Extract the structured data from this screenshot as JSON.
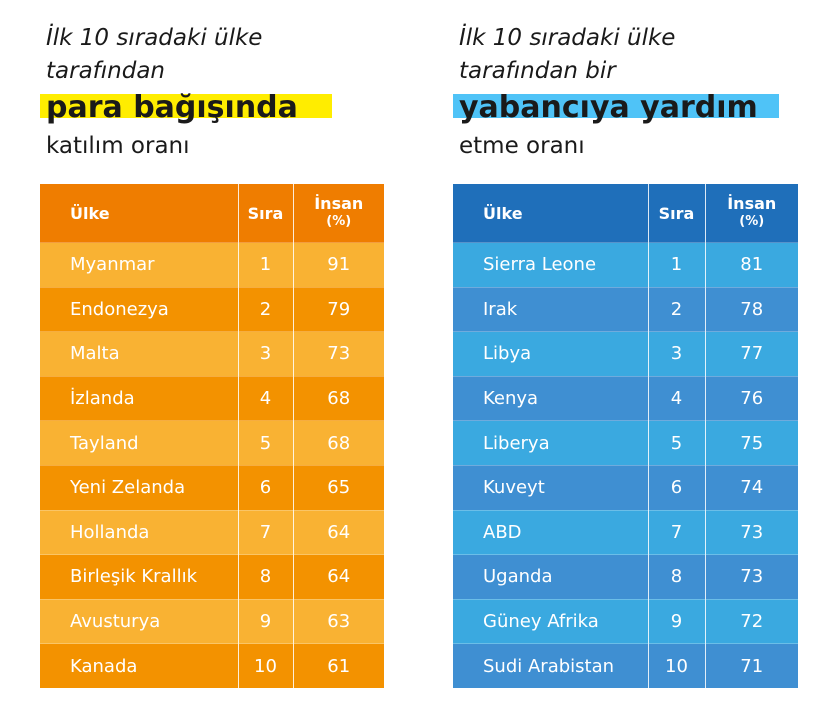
{
  "colors": {
    "orange_header": "#ef7d00",
    "orange_light": "#f9b233",
    "orange_dark": "#f39200",
    "blue_header": "#1f6fba",
    "blue_light": "#3aa9e0",
    "blue_dark": "#3f8fd2",
    "highlight_yellow": "#ffed00",
    "highlight_blue": "#4fc3f7"
  },
  "left": {
    "title_line1": "İlk 10 sıradaki ülke",
    "title_line2": "tarafından",
    "highlight": "para bağışında",
    "subtitle": "katılım oranı",
    "headers": {
      "country": "Ülke",
      "rank": "Sıra",
      "pct_main": "İnsan",
      "pct_unit": "(%)"
    }
  },
  "right": {
    "title_line1": "İlk 10 sıradaki ülke",
    "title_line2": "tarafından bir",
    "highlight": "yabancıya yardım",
    "subtitle": "etme oranı",
    "headers": {
      "country": "Ülke",
      "rank": "Sıra",
      "pct_main": "İnsan",
      "pct_unit": "(%)"
    }
  },
  "chart_data": [
    {
      "type": "table",
      "columns": [
        "Ülke",
        "Sıra",
        "İnsan (%)"
      ],
      "rows": [
        [
          "Myanmar",
          "1",
          "91"
        ],
        [
          "Endonezya",
          "2",
          "79"
        ],
        [
          "Malta",
          "3",
          "73"
        ],
        [
          "İzlanda",
          "4",
          "68"
        ],
        [
          "Tayland",
          "5",
          "68"
        ],
        [
          "Yeni Zelanda",
          "6",
          "65"
        ],
        [
          "Hollanda",
          "7",
          "64"
        ],
        [
          "Birleşik Krallık",
          "8",
          "64"
        ],
        [
          "Avusturya",
          "9",
          "63"
        ],
        [
          "Kanada",
          "10",
          "61"
        ]
      ]
    },
    {
      "type": "table",
      "columns": [
        "Ülke",
        "Sıra",
        "İnsan (%)"
      ],
      "rows": [
        [
          "Sierra Leone",
          "1",
          "81"
        ],
        [
          "Irak",
          "2",
          "78"
        ],
        [
          "Libya",
          "3",
          "77"
        ],
        [
          "Kenya",
          "4",
          "76"
        ],
        [
          "Liberya",
          "5",
          "75"
        ],
        [
          "Kuveyt",
          "6",
          "74"
        ],
        [
          "ABD",
          "7",
          "73"
        ],
        [
          "Uganda",
          "8",
          "73"
        ],
        [
          "Güney Afrika",
          "9",
          "72"
        ],
        [
          "Sudi Arabistan",
          "10",
          "71"
        ]
      ]
    }
  ]
}
